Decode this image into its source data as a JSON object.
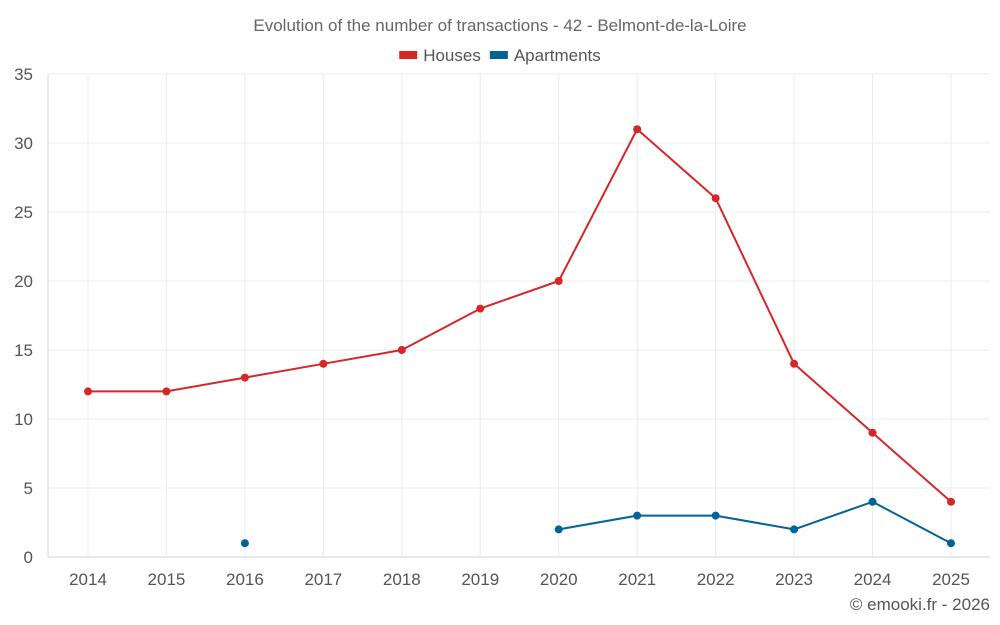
{
  "chart_data": {
    "type": "line",
    "title": "Evolution of the number of transactions - 42 - Belmont-de-la-Loire",
    "xlabel": "",
    "ylabel": "",
    "categories": [
      "2014",
      "2015",
      "2016",
      "2017",
      "2018",
      "2019",
      "2020",
      "2021",
      "2022",
      "2023",
      "2024",
      "2025"
    ],
    "ylim": [
      0,
      35
    ],
    "yticks": [
      0,
      5,
      10,
      15,
      20,
      25,
      30,
      35
    ],
    "grid": true,
    "legend_position": "top-center",
    "series": [
      {
        "name": "Houses",
        "color": "#d62728",
        "values": [
          12,
          12,
          13,
          14,
          15,
          18,
          20,
          31,
          26,
          14,
          9,
          4
        ]
      },
      {
        "name": "Apartments",
        "color": "#036399",
        "values": [
          null,
          null,
          1,
          null,
          null,
          null,
          2,
          3,
          3,
          2,
          4,
          1
        ]
      }
    ]
  },
  "credit": "© emooki.fr - 2026"
}
